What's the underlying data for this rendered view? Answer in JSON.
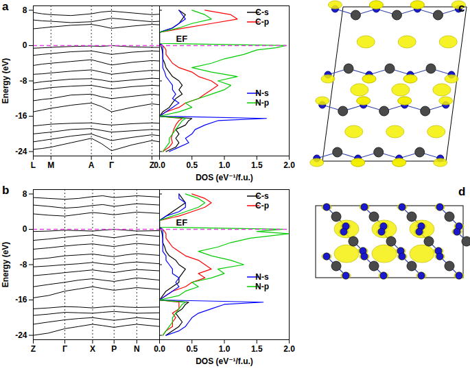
{
  "chart_data": [
    {
      "type": "line",
      "title": "a",
      "ylabel": "Energy (eV)",
      "x": [
        0,
        0.07,
        0.14,
        0.3,
        0.46,
        0.54,
        0.62,
        0.78,
        0.94,
        1
      ],
      "xlim": [
        0,
        1
      ],
      "xticks": [
        {
          "value": 0,
          "label": "L"
        },
        {
          "value": 0.14,
          "label": "M"
        },
        {
          "value": 0.46,
          "label": "A"
        },
        {
          "value": 0.62,
          "label": "Γ"
        },
        {
          "value": 0.94,
          "label": "Z"
        }
      ],
      "ylim": [
        -25,
        9
      ],
      "yticks": [
        -24,
        -16,
        -8,
        0,
        8
      ],
      "grid": true,
      "color": "#000000",
      "fermi_level": 0,
      "series": [
        {
          "values": [
            -23.5,
            -23.3,
            -23.0,
            -22.0,
            -21.0,
            -22.2,
            -23.8,
            -22.5,
            -21.5,
            -21.8
          ]
        },
        {
          "values": [
            -21.8,
            -21.5,
            -21.2,
            -20.5,
            -20.0,
            -20.8,
            -21.5,
            -20.8,
            -20.2,
            -20.4
          ]
        },
        {
          "values": [
            -20.0,
            -19.8,
            -19.6,
            -19.0,
            -18.8,
            -19.2,
            -19.6,
            -19.3,
            -19.0,
            -19.1
          ]
        },
        {
          "values": [
            -18.2,
            -18.0,
            -17.8,
            -17.6,
            -17.5,
            -17.8,
            -18.0,
            -17.7,
            -17.5,
            -17.6
          ]
        },
        {
          "values": [
            -15.0,
            -14.6,
            -14.2,
            -13.5,
            -13.0,
            -13.8,
            -15.0,
            -14.0,
            -13.2,
            -13.4
          ]
        },
        {
          "values": [
            -12.5,
            -12.2,
            -12.0,
            -11.2,
            -11.0,
            -11.6,
            -12.0,
            -11.5,
            -11.0,
            -11.2
          ]
        },
        {
          "values": [
            -10.0,
            -9.8,
            -9.5,
            -9.2,
            -9.0,
            -9.4,
            -9.8,
            -9.3,
            -9.0,
            -9.1
          ]
        },
        {
          "values": [
            -8.5,
            -8.2,
            -8.0,
            -7.6,
            -7.5,
            -7.8,
            -8.2,
            -7.8,
            -7.4,
            -7.5
          ]
        },
        {
          "values": [
            -6.5,
            -6.4,
            -6.2,
            -5.8,
            -5.5,
            -6.0,
            -6.5,
            -6.0,
            -5.6,
            -5.7
          ]
        },
        {
          "values": [
            -4.5,
            -4.2,
            -4.0,
            -3.6,
            -3.2,
            -3.8,
            -4.4,
            -3.8,
            -3.4,
            -3.5
          ]
        },
        {
          "values": [
            -2.2,
            -2.0,
            -1.8,
            -1.4,
            -1.2,
            -1.6,
            -2.0,
            -1.5,
            -1.2,
            -1.3
          ]
        },
        {
          "values": [
            -0.6,
            -0.5,
            -0.4,
            -0.2,
            -0.1,
            -0.2,
            0.0,
            -0.3,
            -0.4,
            -0.4
          ]
        },
        {
          "values": [
            3.8,
            4.0,
            4.2,
            4.6,
            4.8,
            4.4,
            3.9,
            4.4,
            4.8,
            4.7
          ]
        },
        {
          "values": [
            5.8,
            5.6,
            5.5,
            5.2,
            5.4,
            5.8,
            6.2,
            5.8,
            5.4,
            5.5
          ]
        },
        {
          "values": [
            7.5,
            7.2,
            7.0,
            6.8,
            7.2,
            7.6,
            7.8,
            7.4,
            7.0,
            7.1
          ]
        }
      ]
    },
    {
      "type": "line",
      "xlabel": "DOS (eV⁻¹/f.u.)",
      "y": [
        -24,
        -23,
        -22,
        -21,
        -20,
        -19,
        -18,
        -17,
        -16.5,
        -16,
        -15,
        -14,
        -13,
        -12,
        -11,
        -10,
        -9,
        -8,
        -7,
        -6,
        -5,
        -4,
        -3,
        -2,
        -1,
        -0.5,
        0,
        0.5,
        1,
        2,
        3,
        4,
        5,
        6,
        7,
        8
      ],
      "xlim": [
        0,
        2
      ],
      "xticks": [
        {
          "value": 0,
          "label": "0.0"
        },
        {
          "value": 0.5,
          "label": "0.5"
        },
        {
          "value": 1,
          "label": "1.0"
        },
        {
          "value": 1.5,
          "label": "1.5"
        },
        {
          "value": 2,
          "label": "2.0"
        }
      ],
      "ylim": [
        -25,
        9
      ],
      "yticks": [
        -24,
        -16,
        -8,
        0,
        8
      ],
      "tick_labels": "x",
      "fermi_level": 0,
      "annotations": [
        {
          "text": "EF"
        }
      ],
      "series": [
        {
          "name": "C-s",
          "color": "#000000",
          "values": [
            0.1,
            0.25,
            0.3,
            0.25,
            0.3,
            0.25,
            0.4,
            0.45,
            0.5,
            0,
            0.05,
            0.15,
            0.2,
            0.25,
            0.35,
            0.3,
            0.35,
            0.3,
            0.2,
            0.15,
            0.1,
            0.08,
            0.05,
            0.05,
            0.04,
            0.03,
            0.02,
            0,
            0,
            0,
            0,
            0.2,
            0.3,
            0.35,
            0.4,
            0.3
          ]
        },
        {
          "name": "C-p",
          "color": "#ff0000",
          "values": [
            0.05,
            0.15,
            0.2,
            0.18,
            0.2,
            0.22,
            0.25,
            0.3,
            0.35,
            0,
            0.1,
            0.3,
            0.4,
            0.6,
            0.7,
            0.8,
            0.9,
            0.8,
            0.6,
            0.5,
            0.3,
            0.2,
            0.15,
            0.1,
            0.1,
            0.08,
            0.05,
            0,
            0,
            0,
            0,
            0.4,
            0.8,
            1.2,
            1.1,
            0.7
          ]
        },
        {
          "name": "N-s",
          "color": "#0000ff",
          "values": [
            0.15,
            0.3,
            0.45,
            0.4,
            0.5,
            0.55,
            0.7,
            0.9,
            1.65,
            0,
            0.1,
            0.2,
            0.3,
            0.2,
            0.25,
            0.2,
            0.2,
            0.15,
            0.1,
            0.08,
            0.05,
            0.05,
            0.05,
            0.05,
            0.05,
            0.05,
            0.05,
            0,
            0,
            0,
            0,
            0.2,
            0.3,
            0.4,
            0.35,
            0.3
          ]
        },
        {
          "name": "N-p",
          "color": "#00cc00",
          "values": [
            0.05,
            0.1,
            0.15,
            0.15,
            0.2,
            0.25,
            0.3,
            0.35,
            0.4,
            0,
            0.3,
            0.5,
            0.4,
            0.6,
            0.8,
            1.0,
            1.1,
            0.9,
            1.2,
            0.8,
            0.5,
            0.8,
            1.0,
            1.3,
            1.5,
            1.8,
            1.95,
            0,
            0,
            0,
            0,
            0.3,
            0.5,
            0.8,
            0.7,
            0.5
          ]
        }
      ]
    },
    {
      "type": "line",
      "title": "b",
      "ylabel": "Energy (eV)",
      "x": [
        0,
        0.12,
        0.25,
        0.36,
        0.47,
        0.55,
        0.64,
        0.73,
        0.82,
        1
      ],
      "xlim": [
        0,
        1
      ],
      "xticks": [
        {
          "value": 0,
          "label": "Z"
        },
        {
          "value": 0.25,
          "label": "Γ"
        },
        {
          "value": 0.47,
          "label": "X"
        },
        {
          "value": 0.64,
          "label": "P"
        },
        {
          "value": 0.82,
          "label": "N"
        }
      ],
      "ylim": [
        -25,
        9
      ],
      "yticks": [
        -24,
        -16,
        -8,
        0,
        8
      ],
      "grid": true,
      "color": "#000000",
      "fermi_level": 0,
      "series": [
        {
          "values": [
            -24.0,
            -23.5,
            -22.5,
            -22.0,
            -21.5,
            -21.8,
            -22.2,
            -21.8,
            -21.5,
            -22.0
          ]
        },
        {
          "values": [
            -21.5,
            -21.0,
            -20.5,
            -20.2,
            -20.0,
            -20.3,
            -20.6,
            -20.3,
            -20.0,
            -20.4
          ]
        },
        {
          "values": [
            -19.5,
            -19.2,
            -18.8,
            -18.9,
            -19.0,
            -18.8,
            -18.6,
            -18.8,
            -19.0,
            -18.9
          ]
        },
        {
          "values": [
            -18.0,
            -17.8,
            -17.5,
            -17.6,
            -17.8,
            -17.6,
            -17.4,
            -17.6,
            -17.7,
            -17.6
          ]
        },
        {
          "values": [
            -15.5,
            -15.0,
            -14.0,
            -13.5,
            -13.0,
            -13.4,
            -13.8,
            -13.5,
            -13.2,
            -13.6
          ]
        },
        {
          "values": [
            -13.0,
            -12.5,
            -12.0,
            -11.5,
            -11.2,
            -11.5,
            -11.8,
            -11.4,
            -11.0,
            -11.5
          ]
        },
        {
          "values": [
            -10.5,
            -10.2,
            -9.8,
            -9.5,
            -9.2,
            -9.5,
            -9.8,
            -9.4,
            -9.1,
            -9.4
          ]
        },
        {
          "values": [
            -8.5,
            -8.3,
            -8.0,
            -7.8,
            -7.5,
            -7.8,
            -8.0,
            -7.6,
            -7.4,
            -7.8
          ]
        },
        {
          "values": [
            -6.8,
            -6.5,
            -6.0,
            -5.8,
            -5.6,
            -5.9,
            -6.2,
            -5.8,
            -5.5,
            -5.9
          ]
        },
        {
          "values": [
            -4.5,
            -4.2,
            -3.8,
            -3.5,
            -3.3,
            -3.6,
            -3.9,
            -3.5,
            -3.2,
            -3.6
          ]
        },
        {
          "values": [
            -2.5,
            -2.2,
            -1.8,
            -1.5,
            -1.3,
            -1.6,
            -1.9,
            -1.5,
            -1.2,
            -1.6
          ]
        },
        {
          "values": [
            -0.5,
            -0.4,
            -0.2,
            -0.3,
            -0.4,
            -0.2,
            0.0,
            -0.2,
            -0.4,
            -0.3
          ]
        },
        {
          "values": [
            3.5,
            3.2,
            3.0,
            3.4,
            3.8,
            3.6,
            3.3,
            3.6,
            3.9,
            3.6
          ]
        },
        {
          "values": [
            5.5,
            5.2,
            4.8,
            5.0,
            5.4,
            5.6,
            5.2,
            5.5,
            5.8,
            5.5
          ]
        },
        {
          "values": [
            7.2,
            7.0,
            6.8,
            7.0,
            7.4,
            7.6,
            7.2,
            7.4,
            7.6,
            7.3
          ]
        }
      ]
    },
    {
      "type": "line",
      "xlabel": "DOS (eV⁻¹/f.u.)",
      "y": [
        -24,
        -23,
        -22,
        -21,
        -20,
        -19,
        -18,
        -17,
        -16.5,
        -16,
        -15,
        -14,
        -13,
        -12,
        -11,
        -10,
        -9,
        -8,
        -7,
        -6,
        -5,
        -4,
        -3,
        -2,
        -1,
        -0.5,
        0,
        0.5,
        1,
        2,
        3,
        4,
        5,
        6,
        7,
        8
      ],
      "xlim": [
        0,
        2
      ],
      "xticks": [
        {
          "value": 0,
          "label": "0.0"
        },
        {
          "value": 0.5,
          "label": "0.5"
        },
        {
          "value": 1,
          "label": "1.0"
        },
        {
          "value": 1.5,
          "label": "1.5"
        },
        {
          "value": 2,
          "label": "2.0"
        }
      ],
      "ylim": [
        -25,
        9
      ],
      "yticks": [
        -24,
        -16,
        -8,
        0,
        8
      ],
      "tick_labels": "x",
      "fermi_level": 0,
      "annotations": [
        {
          "text": "EF"
        }
      ],
      "series": [
        {
          "name": "C-s",
          "color": "#000000",
          "values": [
            0.1,
            0.2,
            0.3,
            0.35,
            0.3,
            0.25,
            0.35,
            0.4,
            0.45,
            0,
            0.05,
            0.1,
            0.2,
            0.3,
            0.3,
            0.35,
            0.4,
            0.3,
            0.25,
            0.15,
            0.1,
            0.08,
            0.05,
            0.05,
            0.04,
            0.03,
            0.02,
            0,
            0,
            0,
            0.1,
            0.2,
            0.3,
            0.4,
            0.35,
            0.3
          ]
        },
        {
          "name": "C-p",
          "color": "#ff0000",
          "values": [
            0.05,
            0.1,
            0.2,
            0.2,
            0.25,
            0.2,
            0.3,
            0.3,
            0.3,
            0,
            0.1,
            0.2,
            0.4,
            0.5,
            0.7,
            0.6,
            0.8,
            0.7,
            0.6,
            0.4,
            0.3,
            0.2,
            0.15,
            0.1,
            0.1,
            0.08,
            0.05,
            0,
            0,
            0,
            0.3,
            0.5,
            0.7,
            0.8,
            0.7,
            0.5
          ]
        },
        {
          "name": "N-s",
          "color": "#0000ff",
          "values": [
            0.1,
            0.3,
            0.4,
            0.45,
            0.5,
            0.6,
            0.8,
            1.0,
            1.6,
            0,
            0.1,
            0.2,
            0.3,
            0.25,
            0.3,
            0.2,
            0.2,
            0.15,
            0.1,
            0.1,
            0.05,
            0.05,
            0.05,
            0.05,
            0.05,
            0.05,
            0.05,
            0,
            0,
            0,
            0.1,
            0.3,
            0.4,
            0.4,
            0.3,
            0.3
          ]
        },
        {
          "name": "N-p",
          "color": "#00cc00",
          "values": [
            0.05,
            0.1,
            0.15,
            0.2,
            0.2,
            0.25,
            0.3,
            0.35,
            0.4,
            0,
            0.3,
            0.4,
            0.6,
            0.5,
            0.8,
            1.0,
            0.9,
            1.3,
            1.1,
            0.8,
            0.6,
            0.9,
            1.1,
            1.4,
            2.0,
            1.5,
            1.9,
            0,
            0,
            0,
            0.2,
            0.4,
            0.6,
            0.7,
            0.6,
            0.4
          ]
        }
      ]
    }
  ],
  "diagrams": [
    {
      "label": "c"
    },
    {
      "label": "d"
    }
  ]
}
